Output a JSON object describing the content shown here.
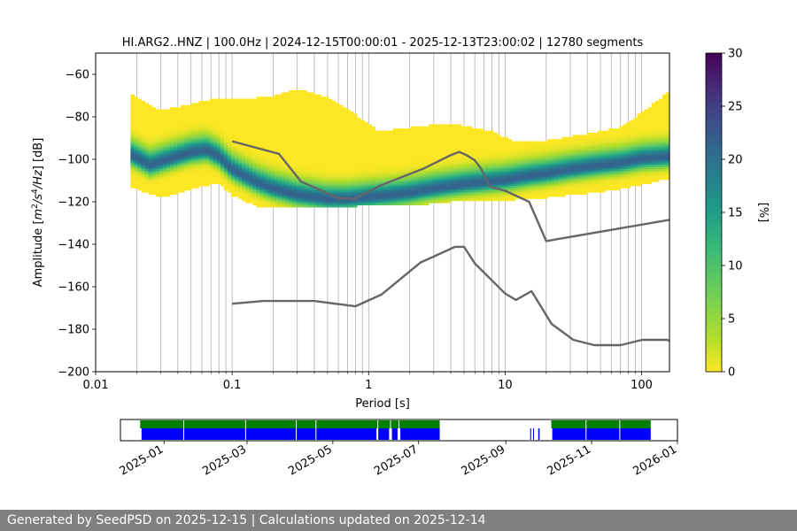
{
  "title": "HI.ARG2..HNZ | 100.0Hz | 2024-12-15T00:00:01 - 2025-12-13T23:00:02 | 12780 segments",
  "footer": "Generated by SeedPSD on 2025-12-15 | Calculations updated on 2025-12-14",
  "colors": {
    "noise_model": "#666666",
    "grid": "#b0b0b0",
    "coverage_data": "#008000",
    "coverage_gaps": "#0000ff"
  },
  "chart_data": [
    {
      "type": "heatmap",
      "title": "HI.ARG2..HNZ | 100.0Hz | 2024-12-15T00:00:01 - 2025-12-13T23:00:02 | 12780 segments",
      "xlabel": "Period [s]",
      "ylabel": "Amplitude [m²/s⁴/Hz] [dB]",
      "ylabel_parts": [
        "Amplitude [",
        "m",
        "2",
        "/s",
        "4",
        "/Hz",
        "] [dB]"
      ],
      "xscale": "log",
      "xlim": [
        0.01,
        160
      ],
      "ylim": [
        -200,
        -50
      ],
      "x_ticks": [
        {
          "value": 0.01,
          "label": "0.01"
        },
        {
          "value": 0.1,
          "label": "0.1"
        },
        {
          "value": 1,
          "label": "1"
        },
        {
          "value": 10,
          "label": "10"
        },
        {
          "value": 100,
          "label": "100"
        }
      ],
      "y_ticks": [
        -60,
        -80,
        -100,
        -120,
        -140,
        -160,
        -180,
        -200
      ],
      "grid": true,
      "grid_x_values": [
        0.02,
        0.03,
        0.04,
        0.05,
        0.06,
        0.07,
        0.08,
        0.09,
        0.1,
        0.2,
        0.3,
        0.4,
        0.5,
        0.6,
        0.7,
        0.8,
        0.9,
        1,
        2,
        3,
        4,
        5,
        6,
        7,
        8,
        9,
        10,
        20,
        30,
        40,
        50,
        60,
        70,
        80,
        90,
        100
      ],
      "colorbar": {
        "label": "[%]",
        "range": [
          0,
          30
        ],
        "ticks": [
          0,
          5,
          10,
          15,
          20,
          25,
          30
        ],
        "colormap": "viridis_r"
      },
      "psd_distribution": {
        "period_range": [
          0.018,
          160
        ],
        "mode_curve": {
          "period": [
            0.018,
            0.025,
            0.035,
            0.05,
            0.065,
            0.08,
            0.1,
            0.15,
            0.2,
            0.3,
            0.5,
            0.7,
            1,
            1.5,
            2,
            3,
            5,
            7,
            10,
            15,
            20,
            30,
            50,
            70,
            100,
            160
          ],
          "db": [
            -98,
            -103,
            -100,
            -97,
            -96,
            -99,
            -105,
            -111,
            -114,
            -117,
            -119,
            -119,
            -118,
            -117,
            -116,
            -114,
            -112,
            -111,
            -110,
            -108,
            -107,
            -105,
            -103,
            -102,
            -100,
            -99
          ]
        },
        "upper_envelope": {
          "period": [
            0.018,
            0.03,
            0.05,
            0.08,
            0.1,
            0.15,
            0.2,
            0.3,
            0.5,
            0.8,
            1.2,
            2,
            4,
            8,
            12,
            20,
            40,
            70,
            100,
            160
          ],
          "db": [
            -70,
            -78,
            -75,
            -72,
            -73,
            -72,
            -71,
            -68,
            -72,
            -80,
            -88,
            -86,
            -84,
            -88,
            -93,
            -92,
            -89,
            -86,
            -79,
            -69
          ]
        },
        "lower_envelope": {
          "period": [
            0.018,
            0.03,
            0.05,
            0.08,
            0.1,
            0.15,
            0.2,
            0.3,
            0.5,
            0.8,
            1.2,
            2,
            4,
            8,
            12,
            20,
            40,
            70,
            100,
            160
          ],
          "db": [
            -112,
            -117,
            -113,
            -110,
            -116,
            -121,
            -122,
            -122,
            -122,
            -121,
            -121,
            -121,
            -119,
            -119,
            -118,
            -117,
            -115,
            -113,
            -111,
            -108
          ]
        }
      },
      "series": [
        {
          "period": [
            0.1,
            0.22,
            0.32,
            0.6,
            0.8,
            1.2,
            2.5,
            4,
            4.6,
            5.2,
            6,
            6.6,
            7.8,
            10,
            15,
            20,
            160
          ],
          "db": [
            -91.5,
            -97.4,
            -110.5,
            -118.3,
            -118.6,
            -112.5,
            -104.5,
            -98,
            -96.5,
            -98,
            -100.5,
            -104,
            -113,
            -114.8,
            -120,
            -138.5,
            -128.5
          ]
        },
        {
          "period": [
            0.1,
            0.17,
            0.4,
            0.8,
            1.24,
            2.4,
            4.3,
            5,
            6,
            10,
            12,
            15.6,
            21.9,
            31.6,
            45,
            70,
            101,
            154,
            160
          ],
          "db": [
            -168,
            -166.7,
            -166.7,
            -169.2,
            -163.7,
            -148.6,
            -141.2,
            -141.2,
            -149,
            -163.2,
            -166.2,
            -162.1,
            -177.5,
            -185,
            -187.5,
            -187.5,
            -185,
            -185,
            -185.5
          ]
        }
      ]
    },
    {
      "type": "timeline",
      "xlim": [
        "2024-12-01",
        "2026-01-01"
      ],
      "x_ticks": [
        "2025-01",
        "2025-03",
        "2025-05",
        "2025-07",
        "2025-09",
        "2025-11",
        "2026-01"
      ],
      "data_available": [
        [
          "2024-12-15",
          "2025-07-16"
        ],
        [
          "2025-10-03",
          "2025-12-13"
        ]
      ],
      "data_gaps": [
        "2025-01-15",
        "2025-02-28",
        "2025-04-05",
        "2025-04-19",
        "2025-06-02",
        "2025-06-11",
        "2025-06-17",
        "2025-09-18",
        "2025-09-20",
        "2025-10-03",
        "2025-10-28",
        "2025-11-21"
      ],
      "blue_segments": [
        [
          "2024-12-16",
          "2025-06-01"
        ],
        [
          "2025-06-02",
          "2025-06-10"
        ],
        [
          "2025-06-12",
          "2025-06-16"
        ],
        [
          "2025-06-18",
          "2025-07-16"
        ],
        [
          "2025-09-18",
          "2025-09-19"
        ],
        [
          "2025-09-20",
          "2025-09-21"
        ],
        [
          "2025-09-24",
          "2025-09-25"
        ],
        [
          "2025-10-04",
          "2025-12-13"
        ]
      ]
    }
  ]
}
